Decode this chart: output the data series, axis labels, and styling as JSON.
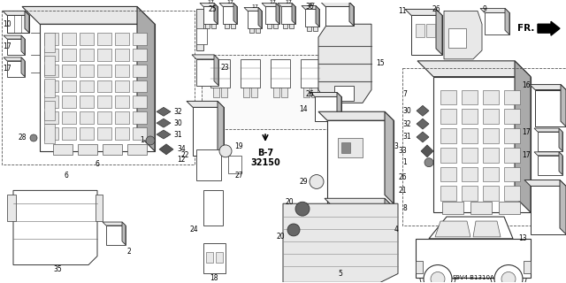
{
  "bg_color": "#ffffff",
  "diagram_code": "S9V4-B1310A",
  "b7_label": "B-7",
  "b7_num": "32150",
  "fr_label": "FR.",
  "line_color": "#333333",
  "gray_fill": "#cccccc",
  "light_gray": "#e8e8e8",
  "white": "#ffffff",
  "fs_label": 5.5,
  "fs_bold": 6.5
}
